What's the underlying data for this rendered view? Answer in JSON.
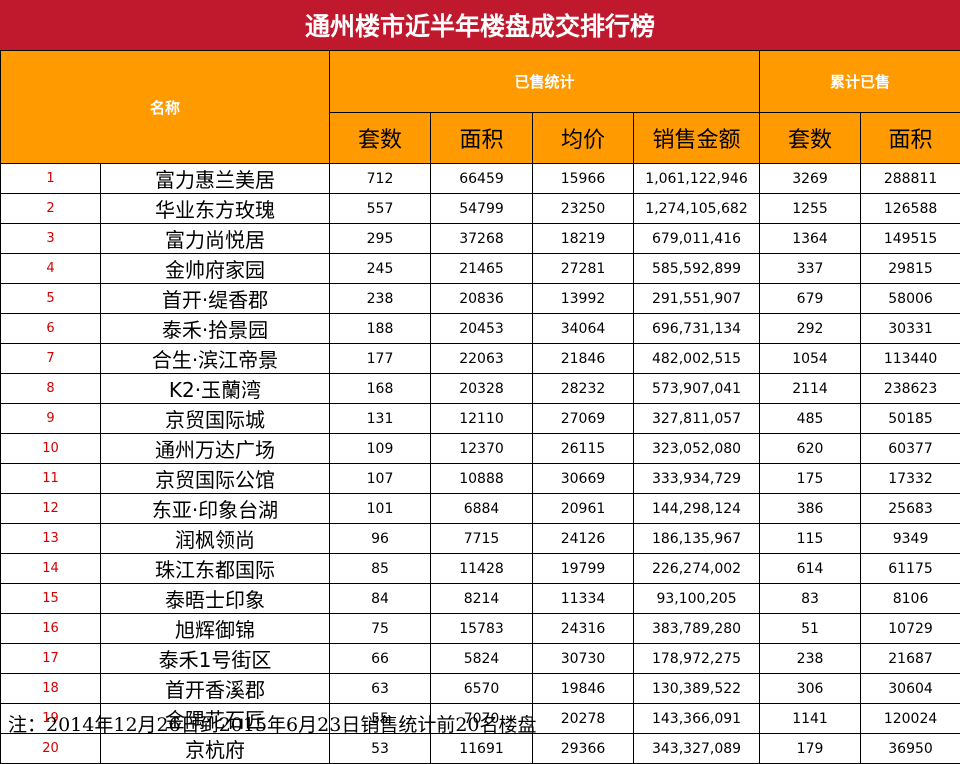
{
  "title": "通州楼市近半年楼盘成交排行榜",
  "header": {
    "name": "名称",
    "sold_group": "已售统计",
    "cumulative_group": "累计已售",
    "sold_cols": [
      "套数",
      "面积",
      "均价",
      "销售金额"
    ],
    "cum_cols": [
      "套数",
      "面积"
    ]
  },
  "rows": [
    {
      "rank": "1",
      "name": "富力惠兰美居",
      "units": "712",
      "area": "66459",
      "avg_price": "15966",
      "amount": "1,061,122,946",
      "cum_units": "3269",
      "cum_area": "288811"
    },
    {
      "rank": "2",
      "name": "华业东方玫瑰",
      "units": "557",
      "area": "54799",
      "avg_price": "23250",
      "amount": "1,274,105,682",
      "cum_units": "1255",
      "cum_area": "126588"
    },
    {
      "rank": "3",
      "name": "富力尚悦居",
      "units": "295",
      "area": "37268",
      "avg_price": "18219",
      "amount": "679,011,416",
      "cum_units": "1364",
      "cum_area": "149515"
    },
    {
      "rank": "4",
      "name": "金帅府家园",
      "units": "245",
      "area": "21465",
      "avg_price": "27281",
      "amount": "585,592,899",
      "cum_units": "337",
      "cum_area": "29815"
    },
    {
      "rank": "5",
      "name": "首开·缇香郡",
      "units": "238",
      "area": "20836",
      "avg_price": "13992",
      "amount": "291,551,907",
      "cum_units": "679",
      "cum_area": "58006"
    },
    {
      "rank": "6",
      "name": "泰禾·拾景园",
      "units": "188",
      "area": "20453",
      "avg_price": "34064",
      "amount": "696,731,134",
      "cum_units": "292",
      "cum_area": "30331"
    },
    {
      "rank": "7",
      "name": "合生·滨江帝景",
      "units": "177",
      "area": "22063",
      "avg_price": "21846",
      "amount": "482,002,515",
      "cum_units": "1054",
      "cum_area": "113440"
    },
    {
      "rank": "8",
      "name": "K2·玉蘭湾",
      "units": "168",
      "area": "20328",
      "avg_price": "28232",
      "amount": "573,907,041",
      "cum_units": "2114",
      "cum_area": "238623"
    },
    {
      "rank": "9",
      "name": "京贸国际城",
      "units": "131",
      "area": "12110",
      "avg_price": "27069",
      "amount": "327,811,057",
      "cum_units": "485",
      "cum_area": "50185"
    },
    {
      "rank": "10",
      "name": "通州万达广场",
      "units": "109",
      "area": "12370",
      "avg_price": "26115",
      "amount": "323,052,080",
      "cum_units": "620",
      "cum_area": "60377"
    },
    {
      "rank": "11",
      "name": "京贸国际公馆",
      "units": "107",
      "area": "10888",
      "avg_price": "30669",
      "amount": "333,934,729",
      "cum_units": "175",
      "cum_area": "17332"
    },
    {
      "rank": "12",
      "name": "东亚·印象台湖",
      "units": "101",
      "area": "6884",
      "avg_price": "20961",
      "amount": "144,298,124",
      "cum_units": "386",
      "cum_area": "25683"
    },
    {
      "rank": "13",
      "name": "润枫领尚",
      "units": "96",
      "area": "7715",
      "avg_price": "24126",
      "amount": "186,135,967",
      "cum_units": "115",
      "cum_area": "9349"
    },
    {
      "rank": "14",
      "name": "珠江东都国际",
      "units": "85",
      "area": "11428",
      "avg_price": "19799",
      "amount": "226,274,002",
      "cum_units": "614",
      "cum_area": "61175"
    },
    {
      "rank": "15",
      "name": "泰晤士印象",
      "units": "84",
      "area": "8214",
      "avg_price": "11334",
      "amount": "93,100,205",
      "cum_units": "83",
      "cum_area": "8106"
    },
    {
      "rank": "16",
      "name": "旭辉御锦",
      "units": "75",
      "area": "15783",
      "avg_price": "24316",
      "amount": "383,789,280",
      "cum_units": "51",
      "cum_area": "10729"
    },
    {
      "rank": "17",
      "name": "泰禾1号街区",
      "units": "66",
      "area": "5824",
      "avg_price": "30730",
      "amount": "178,972,275",
      "cum_units": "238",
      "cum_area": "21687"
    },
    {
      "rank": "18",
      "name": "首开香溪郡",
      "units": "63",
      "area": "6570",
      "avg_price": "19846",
      "amount": "130,389,522",
      "cum_units": "306",
      "cum_area": "30604"
    },
    {
      "rank": "19",
      "name": "金隅花石匠",
      "units": "55",
      "area": "7070",
      "avg_price": "20278",
      "amount": "143,366,091",
      "cum_units": "1141",
      "cum_area": "120024"
    },
    {
      "rank": "20",
      "name": "京杭府",
      "units": "53",
      "area": "11691",
      "avg_price": "29366",
      "amount": "343,327,089",
      "cum_units": "179",
      "cum_area": "36950"
    }
  ],
  "note": "注：2014年12月26日到2015年6月23日销售统计前20名楼盘",
  "colors": {
    "title_bg": "#c0182d",
    "header_bg": "#ff9a00",
    "rank_text": "#d40000"
  }
}
